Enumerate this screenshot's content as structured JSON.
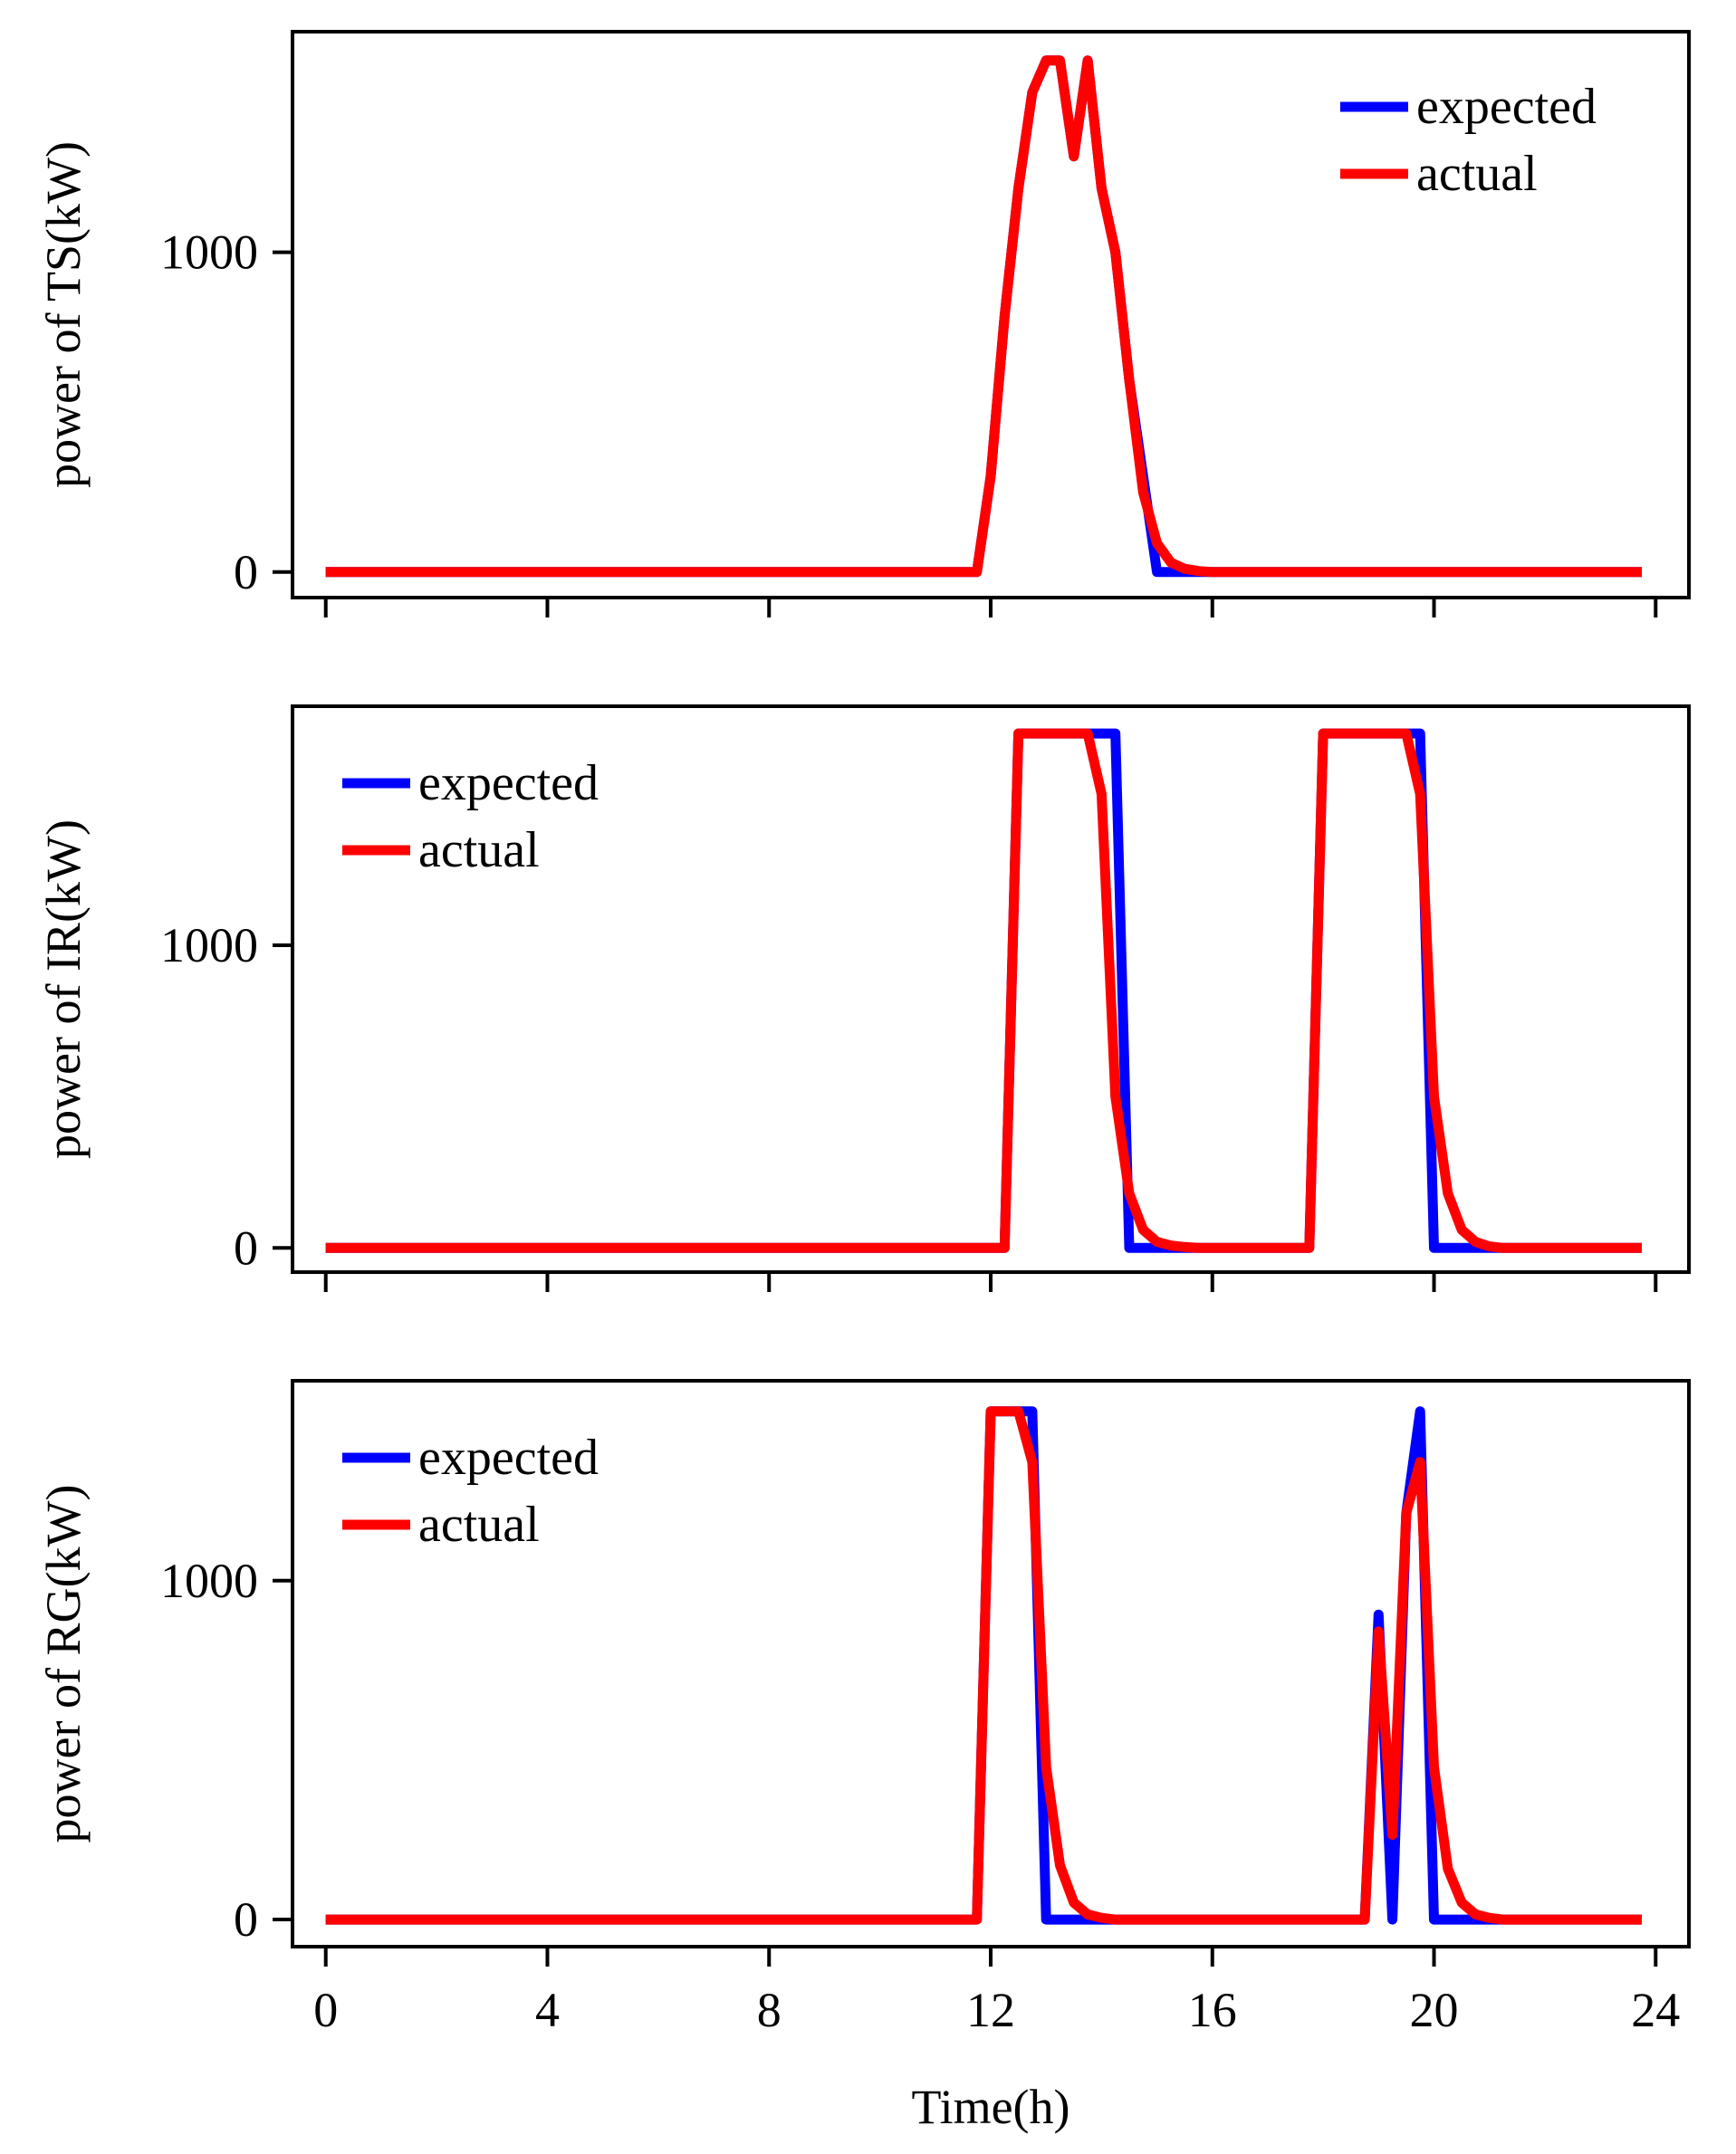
{
  "colors": {
    "expected": "#0000ff",
    "actual": "#ff0000",
    "axis": "#000000",
    "background": "#ffffff"
  },
  "chart_data": [
    {
      "type": "line",
      "ylabel": "power of TS(kW)",
      "xlim": [
        -0.6,
        24.6
      ],
      "ylim": [
        -80,
        1690
      ],
      "xticks": [
        0,
        4,
        8,
        12,
        16,
        20,
        24
      ],
      "yticks": [
        0,
        1000
      ],
      "legend": "top-right",
      "grid": false,
      "series": [
        {
          "name": "expected",
          "x": [
            0,
            11.75,
            12.0,
            12.25,
            12.5,
            12.75,
            13.0,
            13.25,
            13.5,
            13.75,
            14.0,
            14.25,
            14.5,
            14.75,
            15.0,
            15.25,
            23.75
          ],
          "y": [
            0,
            0,
            300,
            800,
            1200,
            1500,
            1600,
            1600,
            1300,
            1600,
            1200,
            1000,
            600,
            300,
            0,
            0,
            0
          ]
        },
        {
          "name": "actual",
          "x": [
            0,
            11.75,
            12.0,
            12.25,
            12.5,
            12.75,
            13.0,
            13.25,
            13.5,
            13.75,
            14.0,
            14.25,
            14.5,
            14.75,
            15.0,
            15.25,
            15.5,
            15.75,
            16.0,
            23.75
          ],
          "y": [
            0,
            0,
            300,
            800,
            1200,
            1500,
            1600,
            1600,
            1300,
            1600,
            1200,
            1000,
            600,
            250,
            90,
            30,
            10,
            3,
            0,
            0
          ]
        }
      ]
    },
    {
      "type": "line",
      "ylabel": "power of IR(kW)",
      "xlim": [
        -0.6,
        24.6
      ],
      "ylim": [
        -80,
        1790
      ],
      "xticks": [
        0,
        4,
        8,
        12,
        16,
        20,
        24
      ],
      "yticks": [
        0,
        1000
      ],
      "legend": "top-left",
      "grid": false,
      "series": [
        {
          "name": "expected",
          "x": [
            0,
            12.25,
            12.5,
            14.25,
            14.5,
            17.75,
            18.0,
            19.75,
            20.0,
            23.75
          ],
          "y": [
            0,
            0,
            1700,
            1700,
            0,
            0,
            1700,
            1700,
            0,
            0
          ]
        },
        {
          "name": "actual",
          "x": [
            0,
            12.25,
            12.5,
            13.75,
            14.0,
            14.25,
            14.5,
            14.75,
            15.0,
            15.25,
            15.5,
            15.75,
            16.0,
            17.75,
            18.0,
            19.5,
            19.75,
            20.0,
            20.25,
            20.5,
            20.75,
            21.0,
            21.25,
            23.75
          ],
          "y": [
            0,
            0,
            1700,
            1700,
            1500,
            500,
            180,
            60,
            20,
            8,
            3,
            0,
            0,
            0,
            1700,
            1700,
            1500,
            500,
            180,
            60,
            20,
            5,
            0,
            0
          ]
        }
      ]
    },
    {
      "type": "line",
      "ylabel": "power of RG(kW)",
      "xlim": [
        -0.6,
        24.6
      ],
      "ylim": [
        -80,
        1590
      ],
      "xticks": [
        0,
        4,
        8,
        12,
        16,
        20,
        24
      ],
      "yticks": [
        0,
        1000
      ],
      "xlabel": "Time(h)",
      "legend": "top-left",
      "grid": false,
      "series": [
        {
          "name": "expected",
          "x": [
            0,
            11.75,
            12.0,
            12.75,
            13.0,
            18.75,
            19.0,
            19.25,
            19.5,
            19.75,
            20.0,
            23.75
          ],
          "y": [
            0,
            0,
            1500,
            1500,
            0,
            0,
            900,
            0,
            1200,
            1500,
            0,
            0
          ]
        },
        {
          "name": "actual",
          "x": [
            0,
            11.75,
            12.0,
            12.5,
            12.75,
            13.0,
            13.25,
            13.5,
            13.75,
            14.0,
            14.25,
            18.75,
            19.0,
            19.25,
            19.5,
            19.75,
            20.0,
            20.25,
            20.5,
            20.75,
            21.0,
            21.25,
            23.75
          ],
          "y": [
            0,
            0,
            1500,
            1500,
            1350,
            450,
            160,
            50,
            15,
            5,
            0,
            0,
            850,
            250,
            1200,
            1350,
            450,
            150,
            50,
            15,
            5,
            0,
            0
          ]
        }
      ]
    }
  ]
}
